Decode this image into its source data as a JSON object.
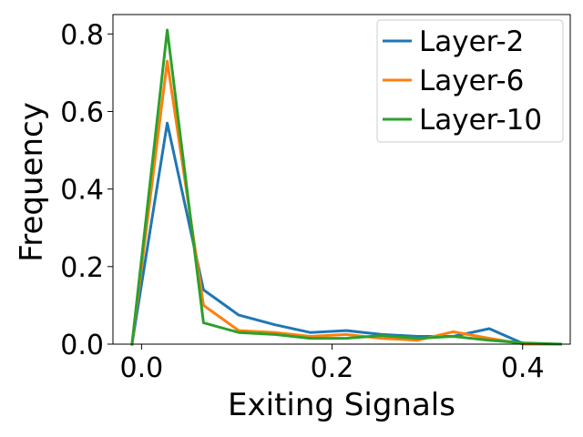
{
  "chart_data": {
    "type": "line",
    "title": "",
    "xlabel": "Exiting Signals",
    "ylabel": "Frequency",
    "xlim": [
      -0.03,
      0.45
    ],
    "ylim": [
      0.0,
      0.85
    ],
    "xticks": [
      {
        "value": 0.0,
        "label": "0.0"
      },
      {
        "value": 0.2,
        "label": "0.2"
      },
      {
        "value": 0.4,
        "label": "0.4"
      }
    ],
    "yticks": [
      {
        "value": 0.0,
        "label": "0.0"
      },
      {
        "value": 0.2,
        "label": "0.2"
      },
      {
        "value": 0.4,
        "label": "0.4"
      },
      {
        "value": 0.6,
        "label": "0.6"
      },
      {
        "value": 0.8,
        "label": "0.8"
      }
    ],
    "grid": false,
    "legend_position": "top-right",
    "series": [
      {
        "name": "Layer-2",
        "color": "#1f77b4",
        "x": [
          -0.01,
          0.027,
          0.065,
          0.102,
          0.14,
          0.177,
          0.215,
          0.252,
          0.29,
          0.327,
          0.365,
          0.402,
          0.44
        ],
        "y": [
          0.0,
          0.57,
          0.14,
          0.075,
          0.05,
          0.03,
          0.035,
          0.025,
          0.02,
          0.02,
          0.04,
          0.0,
          0.0
        ]
      },
      {
        "name": "Layer-6",
        "color": "#ff7f0e",
        "x": [
          -0.01,
          0.027,
          0.065,
          0.102,
          0.14,
          0.177,
          0.215,
          0.252,
          0.29,
          0.327,
          0.365,
          0.402,
          0.44
        ],
        "y": [
          0.0,
          0.73,
          0.1,
          0.035,
          0.03,
          0.02,
          0.025,
          0.015,
          0.01,
          0.032,
          0.015,
          0.0,
          0.0
        ]
      },
      {
        "name": "Layer-10",
        "color": "#2ca02c",
        "x": [
          -0.01,
          0.027,
          0.065,
          0.102,
          0.14,
          0.177,
          0.215,
          0.252,
          0.29,
          0.327,
          0.365,
          0.402,
          0.44
        ],
        "y": [
          0.0,
          0.81,
          0.055,
          0.03,
          0.025,
          0.015,
          0.015,
          0.022,
          0.015,
          0.02,
          0.01,
          0.003,
          0.0
        ]
      }
    ]
  }
}
